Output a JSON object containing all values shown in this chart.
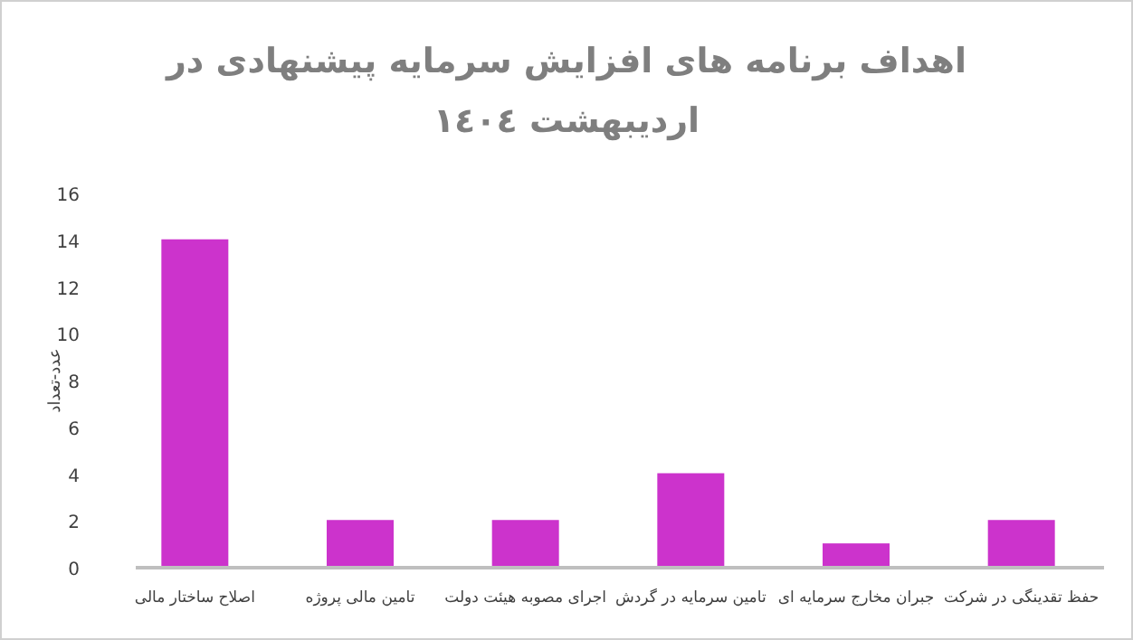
{
  "chart_data": {
    "type": "bar",
    "title": "اهداف برنامه های افزایش سرمایه پیشنهادی در اردیبهشت ١٤٠٤",
    "ylabel": "عدد-تعداد",
    "categories": [
      "اصلاح ساختار مالی",
      "تامین مالی پروژه",
      "اجرای مصوبه هیئت دولت",
      "تامین سرمایه در گردش",
      "جبران مخارج سرمایه ای",
      "حفظ تقدینگی در شرکت"
    ],
    "values": [
      14,
      2,
      2,
      4,
      1,
      2
    ],
    "color": "#cc33cc",
    "ylim": [
      0,
      16
    ],
    "yticks": [
      0,
      2,
      4,
      6,
      8,
      10,
      12,
      14,
      16
    ]
  }
}
